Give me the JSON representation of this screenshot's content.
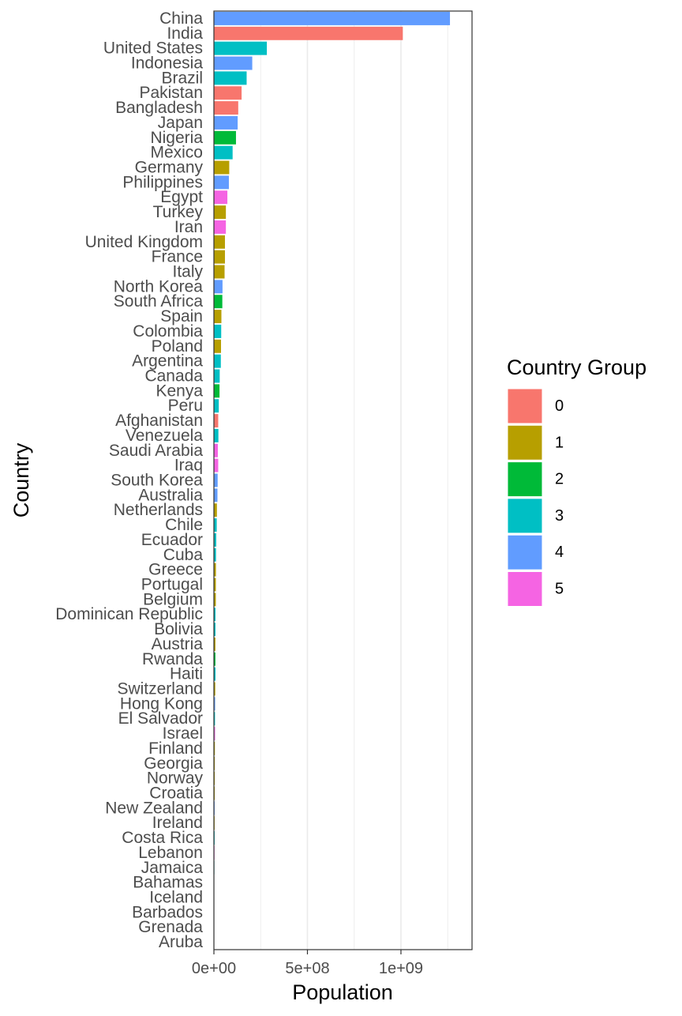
{
  "chart_data": {
    "type": "bar",
    "orientation": "horizontal",
    "xlabel": "Population",
    "ylabel": "Country",
    "xlim": [
      0,
      1380000000
    ],
    "x_ticks": [
      {
        "value": 0,
        "label": "0e+00"
      },
      {
        "value": 500000000,
        "label": "5e+08"
      },
      {
        "value": 1000000000,
        "label": "1e+09"
      }
    ],
    "grid": true,
    "legend": {
      "title": "Country Group",
      "placement": "right",
      "entries": [
        {
          "label": "0",
          "color": "#F8766D"
        },
        {
          "label": "1",
          "color": "#B79F00"
        },
        {
          "label": "2",
          "color": "#00BA38"
        },
        {
          "label": "3",
          "color": "#00BFC4"
        },
        {
          "label": "4",
          "color": "#619CFF"
        },
        {
          "label": "5",
          "color": "#F564E3"
        }
      ]
    },
    "categories": [
      "China",
      "India",
      "United States",
      "Indonesia",
      "Brazil",
      "Pakistan",
      "Bangladesh",
      "Japan",
      "Nigeria",
      "Mexico",
      "Germany",
      "Philippines",
      "Egypt",
      "Turkey",
      "Iran",
      "United Kingdom",
      "France",
      "Italy",
      "North Korea",
      "South Africa",
      "Spain",
      "Colombia",
      "Poland",
      "Argentina",
      "Canada",
      "Kenya",
      "Peru",
      "Afghanistan",
      "Venezuela",
      "Saudi Arabia",
      "Iraq",
      "South Korea",
      "Australia",
      "Netherlands",
      "Chile",
      "Ecuador",
      "Cuba",
      "Greece",
      "Portugal",
      "Belgium",
      "Dominican Republic",
      "Bolivia",
      "Austria",
      "Rwanda",
      "Haiti",
      "Switzerland",
      "Hong Kong",
      "El Salvador",
      "Israel",
      "Finland",
      "Georgia",
      "Norway",
      "Croatia",
      "New Zealand",
      "Ireland",
      "Costa Rica",
      "Lebanon",
      "Jamaica",
      "Bahamas",
      "Iceland",
      "Barbados",
      "Grenada",
      "Aruba"
    ],
    "values": [
      1262000000,
      1010000000,
      283000000,
      205000000,
      175000000,
      148000000,
      130000000,
      127000000,
      118000000,
      100000000,
      82000000,
      80000000,
      72000000,
      64000000,
      64000000,
      59000000,
      59000000,
      57000000,
      46000000,
      45000000,
      40000000,
      39000000,
      38000000,
      37000000,
      31000000,
      30000000,
      26000000,
      23000000,
      24000000,
      21000000,
      23000000,
      20000000,
      19000000,
      16000000,
      15000000,
      12400000,
      11100000,
      10800000,
      10300000,
      10200000,
      8400000,
      8300000,
      8000000,
      8000000,
      8500000,
      7200000,
      6700000,
      5900000,
      6300000,
      5200000,
      4700000,
      4500000,
      4400000,
      3900000,
      3800000,
      3900000,
      3200000,
      2600000,
      300000,
      280000,
      270000,
      100000,
      90000
    ],
    "groups": [
      "4",
      "0",
      "3",
      "4",
      "3",
      "0",
      "0",
      "4",
      "2",
      "3",
      "1",
      "4",
      "5",
      "1",
      "5",
      "1",
      "1",
      "1",
      "4",
      "2",
      "1",
      "3",
      "1",
      "3",
      "3",
      "2",
      "3",
      "0",
      "3",
      "5",
      "5",
      "4",
      "4",
      "1",
      "3",
      "3",
      "3",
      "1",
      "1",
      "1",
      "3",
      "3",
      "1",
      "2",
      "3",
      "1",
      "4",
      "3",
      "5",
      "1",
      "1",
      "1",
      "1",
      "4",
      "1",
      "3",
      "5",
      "3",
      "3",
      "1",
      "3",
      "3",
      "3"
    ]
  }
}
